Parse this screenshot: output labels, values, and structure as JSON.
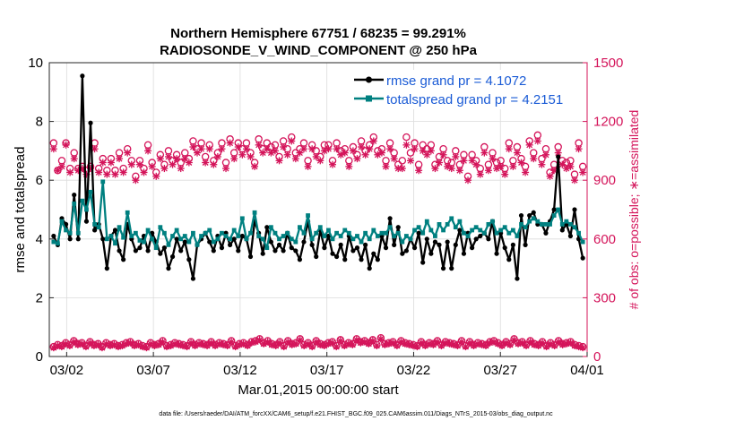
{
  "chart_data": {
    "type": "line",
    "title": "Northern Hemisphere 67751 / 68235 = 99.291%",
    "subtitle": "RADIOSONDE_V_WIND_COMPONENT @ 250 hPa",
    "xlabel": "Mar.01,2015 00:00:00 start",
    "ylabel": "rmse and totalspread",
    "y2label": "# of obs: o=possible; ∗=assimilated",
    "xlim": [
      0,
      31
    ],
    "ylim": [
      0,
      10
    ],
    "y2lim": [
      0,
      1500
    ],
    "x_ticks": [
      {
        "value": 1,
        "label": "03/02"
      },
      {
        "value": 6,
        "label": "03/07"
      },
      {
        "value": 11,
        "label": "03/12"
      },
      {
        "value": 16,
        "label": "03/17"
      },
      {
        "value": 21,
        "label": "03/22"
      },
      {
        "value": 26,
        "label": "03/27"
      },
      {
        "value": 31,
        "label": "04/01"
      }
    ],
    "y_ticks": [
      0,
      2,
      4,
      6,
      8,
      10
    ],
    "y2_ticks": [
      0,
      300,
      600,
      900,
      1200,
      1500
    ],
    "legend": [
      {
        "label": "rmse grand pr = 4.1072",
        "color": "#000000"
      },
      {
        "label": "totalspread grand pr = 4.2151",
        "color": "#008080"
      }
    ],
    "series": [
      {
        "name": "rmse",
        "color": "#000000",
        "axis": "left",
        "values": [
          4.1,
          3.8,
          4.7,
          4.5,
          4.0,
          5.5,
          4.0,
          9.55,
          4.6,
          7.95,
          4.3,
          4.5,
          4.0,
          3.0,
          4.1,
          4.3,
          3.6,
          3.3,
          4.5,
          4.0,
          3.6,
          3.7,
          4.1,
          3.6,
          4.2,
          3.9,
          3.5,
          3.7,
          3.0,
          3.4,
          4.0,
          3.6,
          3.9,
          3.3,
          2.65,
          3.8,
          4.0,
          4.2,
          3.9,
          3.6,
          4.1,
          3.7,
          4.2,
          3.8,
          4.0,
          3.6,
          4.1,
          4.0,
          3.4,
          4.6,
          4.2,
          3.5,
          4.4,
          3.9,
          3.6,
          3.8,
          3.6,
          4.2,
          3.7,
          3.6,
          3.3,
          3.9,
          4.6,
          3.8,
          3.4,
          4.3,
          3.7,
          4.1,
          3.5,
          3.4,
          3.8,
          3.3,
          4.1,
          3.6,
          3.7,
          3.3,
          3.8,
          3.0,
          3.5,
          3.3,
          4.1,
          3.7,
          4.7,
          3.8,
          4.4,
          3.5,
          3.6,
          4.0,
          3.7,
          4.2,
          3.2,
          4.0,
          3.5,
          3.9,
          3.8,
          3.0,
          3.9,
          3.0,
          3.8,
          4.3,
          3.5,
          4.2,
          3.7,
          4.0,
          4.1,
          4.2,
          4.0,
          4.6,
          3.5,
          4.2,
          3.7,
          3.3,
          3.8,
          2.65,
          4.8,
          3.8,
          4.8,
          4.9,
          4.5,
          4.5,
          4.2,
          4.6,
          5.0,
          6.8,
          4.3,
          4.5,
          4.1,
          5.0,
          4.0,
          3.35
        ]
      },
      {
        "name": "totalspread",
        "color": "#008080",
        "axis": "left",
        "values": [
          3.9,
          3.85,
          4.6,
          4.3,
          4.2,
          5.2,
          4.2,
          5.3,
          5.0,
          5.6,
          4.5,
          4.4,
          5.95,
          4.0,
          4.1,
          3.85,
          4.4,
          4.05,
          4.9,
          4.1,
          4.2,
          3.95,
          3.9,
          4.3,
          4.0,
          3.7,
          4.4,
          4.2,
          3.8,
          4.1,
          4.3,
          4.0,
          4.1,
          3.9,
          4.2,
          3.8,
          4.1,
          4.2,
          4.3,
          3.9,
          4.0,
          4.2,
          4.1,
          4.0,
          4.3,
          4.1,
          4.7,
          4.0,
          4.2,
          4.9,
          4.1,
          4.0,
          3.7,
          4.4,
          4.2,
          4.0,
          4.1,
          4.2,
          4.0,
          3.9,
          4.4,
          4.2,
          4.8,
          4.0,
          4.2,
          4.4,
          4.1,
          4.3,
          4.0,
          4.2,
          4.1,
          4.3,
          4.2,
          4.0,
          4.1,
          3.9,
          4.2,
          4.0,
          4.3,
          4.1,
          4.2,
          4.2,
          4.4,
          4.1,
          4.2,
          3.9,
          4.1,
          4.0,
          4.3,
          4.4,
          4.2,
          4.6,
          4.3,
          4.1,
          4.5,
          4.3,
          4.5,
          4.7,
          4.4,
          4.6,
          4.2,
          4.1,
          4.3,
          4.4,
          4.3,
          4.2,
          4.5,
          4.6,
          4.2,
          4.3,
          4.4,
          4.2,
          4.3,
          4.1,
          4.5,
          4.4,
          4.6,
          4.7,
          4.6,
          4.5,
          4.5,
          4.5,
          4.8,
          5.0,
          4.5,
          4.6,
          4.5,
          4.4,
          4.2,
          3.9
        ]
      },
      {
        "name": "possible",
        "color": "#d4145a",
        "axis": "right",
        "marker": "circle",
        "values": [
          1090,
          950,
          1000,
          1090,
          960,
          1040,
          960,
          970,
          950,
          970,
          1090,
          960,
          1010,
          950,
          1010,
          950,
          1040,
          960,
          1060,
          1000,
          920,
          1000,
          960,
          1080,
          990,
          940,
          1030,
          980,
          1050,
          1000,
          1030,
          990,
          1040,
          1010,
          1100,
          1060,
          1090,
          1020,
          1080,
          1000,
          1040,
          1090,
          990,
          1110,
          1040,
          1090,
          1060,
          1090,
          1040,
          990,
          1110,
          1060,
          1090,
          1070,
          1080,
          1020,
          1100,
          1060,
          1120,
          1040,
          1060,
          1090,
          1000,
          1080,
          1050,
          1020,
          1080,
          1080,
          1000,
          1090,
          1050,
          1060,
          1000,
          1070,
          1030,
          1100,
          1050,
          1080,
          1120,
          1050,
          1060,
          1000,
          1090,
          1040,
          980,
          1000,
          1120,
          1040,
          1090,
          980,
          1080,
          1060,
          1080,
          980,
          1020,
          1060,
          1000,
          990,
          1050,
          980,
          1030,
          920,
          1030,
          1000,
          960,
          1070,
          980,
          1040,
          990,
          1000,
          960,
          1090,
          1000,
          1070,
          1010,
          970,
          1100,
          1040,
          1130,
          1010,
          1060,
          940,
          980,
          1070,
          1000,
          990,
          1000,
          930,
          1090,
          970
        ]
      },
      {
        "name": "assimilated",
        "color": "#d4145a",
        "axis": "right",
        "marker": "asterisk",
        "values": [
          1060,
          950,
          970,
          1080,
          940,
          1010,
          950,
          960,
          930,
          960,
          1060,
          940,
          990,
          930,
          990,
          930,
          1010,
          940,
          1040,
          980,
          900,
          980,
          940,
          1050,
          970,
          920,
          1010,
          960,
          1020,
          980,
          1010,
          960,
          1010,
          990,
          1070,
          1040,
          1060,
          990,
          1060,
          980,
          1020,
          1060,
          960,
          1090,
          1010,
          1070,
          1030,
          1060,
          1020,
          970,
          1080,
          1040,
          1060,
          1040,
          1050,
          1000,
          1070,
          1030,
          1100,
          1010,
          1040,
          1060,
          970,
          1060,
          1020,
          1000,
          1050,
          1060,
          980,
          1060,
          1030,
          1040,
          970,
          1050,
          1010,
          1070,
          1030,
          1060,
          1100,
          1030,
          1040,
          970,
          1060,
          1010,
          960,
          960,
          1080,
          1000,
          1060,
          950,
          1050,
          1030,
          1050,
          960,
          990,
          1030,
          970,
          960,
          1020,
          950,
          1000,
          900,
          1000,
          980,
          930,
          1040,
          950,
          1010,
          960,
          970,
          930,
          1060,
          970,
          1040,
          990,
          940,
          1080,
          1010,
          1100,
          980,
          1030,
          920,
          950,
          1040,
          980,
          960,
          970,
          900,
          1060,
          940
        ]
      },
      {
        "name": "possible-bottom",
        "color": "#d4145a",
        "axis": "right",
        "marker": "circle",
        "values": [
          50,
          60,
          55,
          70,
          60,
          80,
          65,
          70,
          55,
          75,
          60,
          65,
          50,
          70,
          60,
          65,
          55,
          60,
          70,
          75,
          60,
          65,
          55,
          50,
          70,
          60,
          65,
          80,
          55,
          60,
          70,
          65,
          60,
          55,
          75,
          60,
          70,
          65,
          60,
          75,
          60,
          70,
          65,
          60,
          80,
          55,
          65,
          70,
          60,
          75,
          80,
          90,
          70,
          80,
          65,
          60,
          75,
          55,
          80,
          65,
          70,
          90,
          60,
          70,
          55,
          80,
          65,
          60,
          70,
          75,
          55,
          85,
          60,
          70,
          65,
          90,
          75,
          80,
          70,
          85,
          60,
          95,
          65,
          70,
          75,
          60,
          80,
          70,
          65,
          60,
          55,
          75,
          60,
          70,
          65,
          80,
          60,
          75,
          70,
          65,
          60,
          80,
          55,
          75,
          60,
          70,
          65,
          60,
          75,
          80,
          70,
          60,
          75,
          65,
          90,
          70,
          75,
          60,
          80,
          65,
          60,
          75,
          55,
          70,
          60,
          80,
          65,
          70,
          75,
          60,
          55,
          50
        ]
      },
      {
        "name": "assimilated-bottom",
        "color": "#d4145a",
        "axis": "right",
        "marker": "asterisk",
        "values": [
          45,
          55,
          50,
          65,
          55,
          75,
          60,
          65,
          50,
          70,
          55,
          60,
          45,
          65,
          55,
          60,
          50,
          55,
          65,
          70,
          55,
          60,
          50,
          45,
          65,
          55,
          60,
          75,
          50,
          55,
          65,
          60,
          55,
          50,
          70,
          55,
          65,
          60,
          55,
          70,
          55,
          65,
          60,
          55,
          75,
          50,
          60,
          65,
          55,
          70,
          75,
          85,
          65,
          75,
          60,
          55,
          70,
          50,
          75,
          60,
          65,
          85,
          55,
          65,
          50,
          75,
          60,
          55,
          65,
          70,
          50,
          80,
          55,
          65,
          60,
          85,
          70,
          75,
          65,
          80,
          55,
          90,
          60,
          65,
          70,
          55,
          75,
          65,
          60,
          55,
          50,
          70,
          55,
          65,
          60,
          75,
          55,
          70,
          65,
          60,
          55,
          75,
          50,
          70,
          55,
          65,
          60,
          55,
          70,
          75,
          65,
          55,
          70,
          60,
          85,
          65,
          70,
          55,
          75,
          60,
          55,
          70,
          50,
          65,
          55,
          75,
          60,
          65,
          70,
          55,
          50,
          45
        ]
      }
    ]
  },
  "footer": "data file: /Users/raeder/DAI/ATM_forcXX/CAM6_setup/f.e21.FHIST_BGC.f09_025.CAM6assim.011/Diags_NTrS_2015-03/obs_diag_output.nc"
}
